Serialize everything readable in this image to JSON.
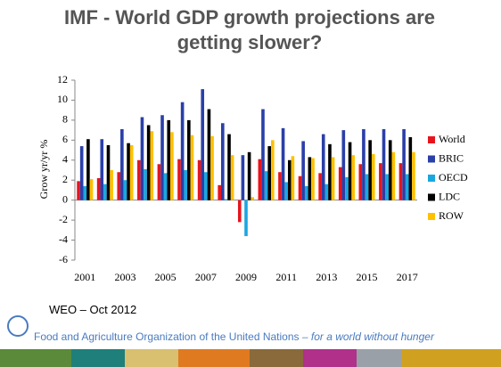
{
  "chart_data": {
    "type": "bar",
    "title": "IMF - World GDP growth projections are getting slower?",
    "y_label": "Grow yr/yr %",
    "categories": [
      "2001",
      null,
      "2003",
      null,
      "2005",
      null,
      "2007",
      null,
      "2009",
      null,
      "2011",
      null,
      "2013",
      null,
      "2015",
      null,
      "2017"
    ],
    "series": [
      {
        "name": "World",
        "color": "#e8141c",
        "values": [
          1.9,
          2.2,
          2.8,
          4.0,
          3.6,
          4.1,
          4.0,
          1.5,
          -2.2,
          4.1,
          2.8,
          2.4,
          2.7,
          3.3,
          3.6,
          3.7,
          3.7
        ]
      },
      {
        "name": "BRIC",
        "color": "#2a3fa8",
        "values": [
          5.4,
          6.1,
          7.1,
          8.3,
          8.5,
          9.8,
          11.1,
          7.7,
          4.5,
          9.1,
          7.2,
          5.9,
          6.6,
          7.0,
          7.1,
          7.1,
          7.1
        ]
      },
      {
        "name": "OECD",
        "color": "#1aa7e0",
        "values": [
          1.4,
          1.6,
          2.0,
          3.1,
          2.7,
          3.0,
          2.8,
          0.1,
          -3.6,
          2.9,
          1.8,
          1.4,
          1.6,
          2.3,
          2.6,
          2.6,
          2.6
        ]
      },
      {
        "name": "LDC",
        "color": "#000000",
        "values": [
          6.1,
          5.5,
          5.7,
          7.5,
          8.0,
          8.0,
          9.1,
          6.6,
          4.8,
          5.4,
          4.0,
          4.3,
          5.6,
          5.8,
          6.0,
          6.0,
          6.3
        ]
      },
      {
        "name": "ROW",
        "color": "#ffc000",
        "values": [
          2.1,
          3.0,
          5.5,
          6.9,
          6.8,
          6.5,
          6.4,
          4.5,
          0.3,
          6.0,
          4.4,
          4.2,
          4.3,
          4.5,
          4.6,
          4.8,
          4.8
        ]
      }
    ],
    "ylim": [
      -6,
      12
    ],
    "yticks": [
      -6,
      -4,
      -2,
      0,
      2,
      4,
      6,
      8,
      10,
      12
    ],
    "grid": false,
    "legend": "right"
  },
  "footer": {
    "source": "WEO – Oct 2012",
    "organization": "Food and Agriculture Organization of the United Nations",
    "tagline": "– for a world without hunger"
  }
}
